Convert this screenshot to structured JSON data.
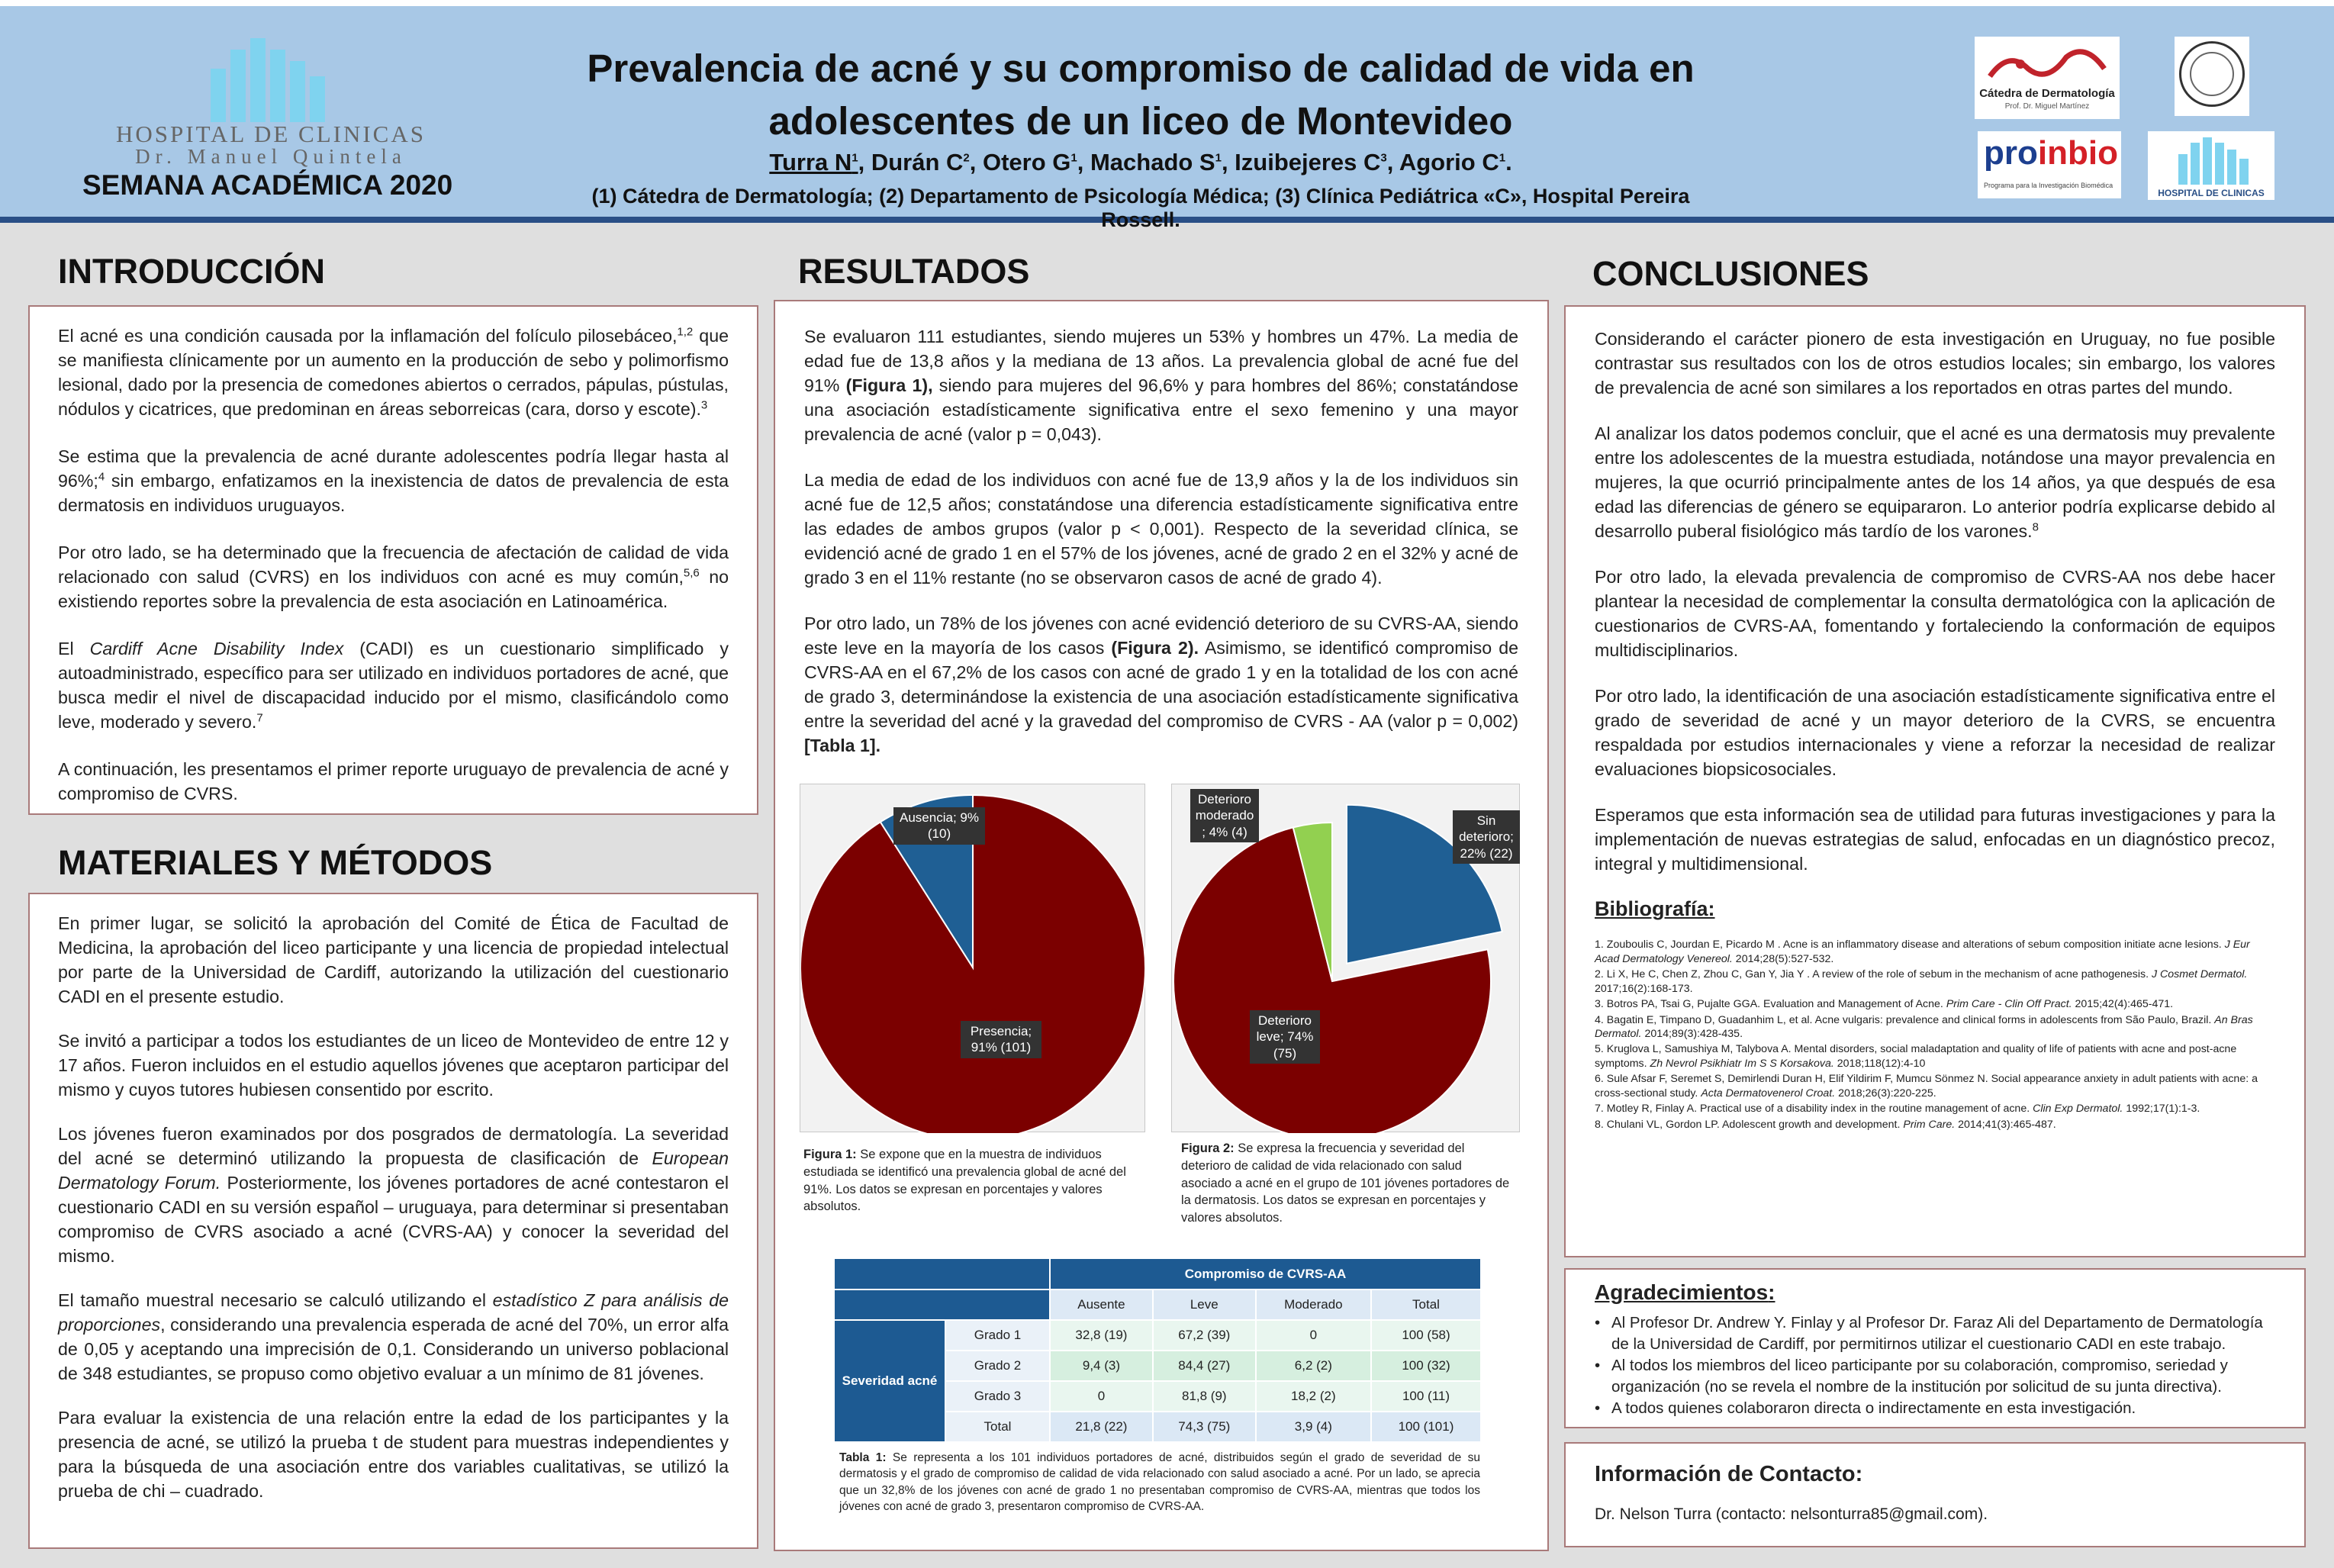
{
  "header": {
    "hospital_name": "HOSPITAL DE CLINICAS",
    "hospital_sub": "Dr. Manuel Quintela",
    "event": "SEMANA ACADÉMICA 2020",
    "title_line1": "Prevalencia de acné y su compromiso de calidad de vida en",
    "title_line2": "adolescentes de un liceo de Montevideo",
    "author_first": "Turra N",
    "author_first_sup": "1",
    "authors_rest": [
      {
        "name": "Durán C",
        "sup": "2"
      },
      {
        "name": "Otero G",
        "sup": "1"
      },
      {
        "name": "Machado S",
        "sup": "1"
      },
      {
        "name": "Izuibejeres C",
        "sup": "3"
      },
      {
        "name": "Agorio C",
        "sup": "1"
      }
    ],
    "affiliations": "(1) Cátedra de Dermatología; (2) Departamento de Psicología Médica; (3) Clínica Pediátrica «C», Hospital Pereira Rossell.",
    "logo_catedra_text": "Cátedra de Dermatología",
    "logo_catedra_sub": "Prof. Dr. Miguel Martínez",
    "logo_proinbio_text": "proinbio",
    "logo_proinbio_sub": "Programa para la Investigación Biomédica",
    "logo_hosp2_text": "HOSPITAL DE CLINICAS",
    "colors": {
      "header_bg": "#a8c8e6",
      "accent": "#2a4f86",
      "dark_red": "#7b0000",
      "blue": "#1d5a92",
      "green": "#92d050"
    }
  },
  "intro": {
    "heading": "INTRODUCCIÓN",
    "p1": "El acné es una condición causada por la inflamación del folículo pilosebáceo,",
    "p1_sup": "1,2",
    "p1b": " que se manifiesta clínicamente por un aumento en la producción de sebo y polimorfismo lesional, dado por la presencia de comedones abiertos o cerrados, pápulas, pústulas, nódulos y cicatrices, que predominan en áreas seborreicas  (cara, dorso y escote).",
    "p1b_sup": "3",
    "p2": "Se estima que la prevalencia de acné durante adolescentes podría llegar hasta al 96%;",
    "p2_sup": "4",
    "p2b": " sin embargo, enfatizamos en la inexistencia de datos de prevalencia de esta dermatosis en individuos uruguayos.",
    "p3": "Por otro lado, se ha determinado que la frecuencia de afectación de calidad de vida relacionado con salud (CVRS) en los individuos con acné es muy común,",
    "p3_sup": "5,6",
    "p3b": " no existiendo reportes sobre la prevalencia de esta asociación en Latinoamérica.",
    "p4a": "El ",
    "p4_italic": "Cardiff Acne Disability Index",
    "p4b": " (CADI) es un cuestionario simplificado y autoadministrado, específico para ser utilizado en individuos portadores de acné, que busca medir el nivel de discapacidad inducido por el mismo, clasificándolo como leve, moderado y severo.",
    "p4_sup": "7",
    "p5": "A continuación, les presentamos el primer reporte uruguayo de prevalencia de acné y compromiso de CVRS."
  },
  "methods": {
    "heading": "MATERIALES Y MÉTODOS",
    "p1": "En primer lugar, se solicitó la aprobación del Comité de Ética de Facultad de Medicina, la aprobación del liceo participante y una licencia de propiedad intelectual por parte de la Universidad de Cardiff, autorizando la utilización del cuestionario CADI en el presente estudio.",
    "p2": "Se invitó a participar a todos los estudiantes de un liceo de Montevideo de entre 12 y 17 años. Fueron incluidos en el estudio aquellos jóvenes que aceptaron participar del mismo y cuyos tutores hubiesen consentido por escrito.",
    "p3a": "Los jóvenes fueron examinados por dos posgrados de dermatología. La severidad del acné se determinó utilizando la propuesta de clasificación de ",
    "p3_italic": "European Dermatology Forum.",
    "p3b": " Posteriormente, los jóvenes portadores de acné contestaron el cuestionario CADI en su versión español – uruguaya, para determinar si presentaban compromiso de CVRS asociado a acné (CVRS-AA) y conocer la severidad del mismo.",
    "p4a": "El tamaño muestral necesario se calculó utilizando el ",
    "p4_italic": "estadístico Z para análisis de proporciones",
    "p4b": ", considerando una prevalencia esperada de acné del 70%, un error alfa de 0,05 y aceptando una imprecisión de 0,1. Considerando un universo poblacional de 348 estudiantes, se propuso como objetivo evaluar a un mínimo de 81 jóvenes.",
    "p5": "Para evaluar la  existencia de una relación entre la edad de los participantes y la presencia de acné, se utilizó la prueba t de student para muestras independientes y para la búsqueda de una asociación entre dos variables cualitativas, se utilizó la prueba de chi – cuadrado."
  },
  "results": {
    "heading": "RESULTADOS",
    "p1a": "Se evaluaron 111 estudiantes, siendo mujeres un 53% y hombres un 47%. La media de edad fue de 13,8 años y la mediana de 13 años. La prevalencia global de acné fue del 91% ",
    "p1_bold": "(Figura 1),",
    "p1b": " siendo para mujeres del 96,6% y para hombres del 86%; constatándose una asociación estadísticamente significativa entre el sexo femenino y una mayor prevalencia de acné (valor p = 0,043).",
    "p2": "La media de edad de los individuos con acné fue de 13,9 años y la de los individuos sin acné fue de 12,5 años; constatándose una diferencia estadísticamente significativa entre las edades de ambos grupos (valor p < 0,001). Respecto de la severidad clínica, se evidenció acné de grado 1 en el 57% de los jóvenes, acné de grado 2 en el 32% y acné de grado 3 en el 11% restante (no se observaron casos de acné de grado 4).",
    "p3a": "Por otro lado, un 78% de los jóvenes con acné evidenció deterioro de su CVRS-AA, siendo este leve en la mayoría de los casos ",
    "p3_bold": "(Figura 2).",
    "p3b": " Asimismo, se identificó compromiso de CVRS-AA en el 67,2% de los casos con acné de grado 1 y en la totalidad de los con acné de grado 3, determinándose la existencia de una asociación estadísticamente significativa entre la severidad del acné y la gravedad del compromiso de CVRS - AA (valor p = 0,002) ",
    "p3_bold2": "[Tabla 1].",
    "fig1_caption_bold": "Figura 1:",
    "fig1_caption": " Se expone que en la muestra de individuos estudiada se identificó una prevalencia global de acné del 91%. Los datos se expresan en porcentajes   y valores absolutos.",
    "fig2_caption_bold": "Figura 2:",
    "fig2_caption": " Se expresa la frecuencia y severidad del deterioro de calidad de vida relacionado con salud asociado a acné en el grupo de 101 jóvenes portadores de la dermatosis. Los datos se expresan en porcentajes y valores absolutos.",
    "table_caption_bold": "Tabla 1:",
    "table_caption": " Se representa a los 101 individuos portadores de acné, distribuidos según el grado de severidad de su dermatosis y el grado de compromiso de calidad de vida relacionado con salud asociado a acné. Por un lado, se aprecia que un 32,8% de los jóvenes con acné de grado 1 no presentaban compromiso de CVRS-AA, mientras que todos los jóvenes con acné de grado 3, presentaron compromiso de CVRS-AA."
  },
  "chart_data": [
    {
      "type": "pie",
      "title": "",
      "slices": [
        {
          "label": "Presencia; 91% (101)",
          "value": 101,
          "percent": 91,
          "color": "#7b0000"
        },
        {
          "label": "Ausencia; 9% (10)",
          "value": 10,
          "percent": 9,
          "color": "#1f5f94"
        }
      ]
    },
    {
      "type": "pie",
      "title": "",
      "slices": [
        {
          "label": "Sin deterioro; 22% (22)",
          "value": 22,
          "percent": 22,
          "color": "#1f5f94",
          "exploded": true
        },
        {
          "label": "Deterioro leve; 74% (75)",
          "value": 75,
          "percent": 74,
          "color": "#7b0000"
        },
        {
          "label": "Deterioro moderado ; 4% (4)",
          "value": 4,
          "percent": 4,
          "color": "#92d050"
        }
      ]
    },
    {
      "type": "table",
      "group_header": "Compromiso de CVRS-AA",
      "row_group": "Severidad acné",
      "columns": [
        "Ausente",
        "Leve",
        "Moderado",
        "Total"
      ],
      "rows": [
        {
          "label": "Grado 1",
          "cells": [
            "32,8 (19)",
            "67,2 (39)",
            "0",
            "100 (58)"
          ]
        },
        {
          "label": "Grado 2",
          "cells": [
            "9,4 (3)",
            "84,4 (27)",
            "6,2 (2)",
            "100 (32)"
          ]
        },
        {
          "label": "Grado 3",
          "cells": [
            "0",
            "81,8 (9)",
            "18,2 (2)",
            "100 (11)"
          ]
        },
        {
          "label": "Total",
          "cells": [
            "21,8 (22)",
            "74,3 (75)",
            "3,9 (4)",
            "100 (101)"
          ]
        }
      ]
    }
  ],
  "conclusions": {
    "heading": "CONCLUSIONES",
    "p1": "Considerando el carácter pionero de esta investigación en Uruguay, no fue posible contrastar sus resultados con los de otros estudios locales; sin embargo, los valores de prevalencia de acné son similares a los reportados en otras partes del mundo.",
    "p2": "Al analizar los datos podemos concluir, que el acné es una dermatosis muy prevalente entre los adolescentes de la muestra estudiada, notándose una mayor prevalencia en mujeres, la que ocurrió principalmente antes de los 14 años, ya que después de esa edad las diferencias de género se equipararon. Lo anterior podría explicarse debido al desarrollo puberal fisiológico más tardío de los varones.",
    "p2_sup": "8",
    "p3": "Por otro lado, la elevada prevalencia de compromiso de CVRS-AA nos debe hacer plantear la necesidad de complementar la consulta dermatológica con la aplicación de cuestionarios de CVRS-AA, fomentando y fortaleciendo la conformación de equipos multidisciplinarios.",
    "p4": "Por otro lado, la identificación de una asociación estadísticamente significativa entre el grado de severidad de acné y un mayor deterioro de la CVRS, se encuentra respaldada por estudios internacionales y viene a reforzar la necesidad de realizar evaluaciones biopsicosociales.",
    "p5": "Esperamos que esta información sea de utilidad para futuras investigaciones y para la implementación de nuevas estrategias de salud, enfocadas en un diagnóstico precoz, integral y multidimensional.",
    "bib_heading": "Bibliografía:",
    "bib": [
      {
        "text": "1. Zouboulis C, Jourdan E, Picardo M . Acne is an inflammatory disease and alterations of sebum composition initiate acne lesions. ",
        "journal": "J Eur Acad Dermatology Venereol.",
        "rest": " 2014;28(5):527-532."
      },
      {
        "text": "2. Li X, He C, Chen Z, Zhou C, Gan Y, Jia Y . A review of the role of sebum in the mechanism of acne pathogenesis. ",
        "journal": "J Cosmet Dermatol.",
        "rest": " 2017;16(2):168-173."
      },
      {
        "text": "3. Botros PA, Tsai G, Pujalte GGA. Evaluation and Management of Acne. ",
        "journal": "Prim Care - Clin Off Pract.",
        "rest": " 2015;42(4):465-471."
      },
      {
        "text": "4. Bagatin E, Timpano D, Guadanhim L, et al. Acne vulgaris: prevalence and clinical forms in adolescents from São Paulo, Brazil. ",
        "journal": "An Bras Dermatol.",
        "rest": " 2014;89(3):428-435."
      },
      {
        "text": "5. Kruglova L, Samushiya M, Talybova A. Mental disorders, social maladaptation and quality of life of patients with acne and post-acne symptoms. ",
        "journal": "Zh Nevrol Psikhiatr Im S S Korsakova.",
        "rest": " 2018;118(12):4-10"
      },
      {
        "text": "6. Sule Afsar F, Seremet S, Demirlendi Duran H, Elif Yildirim F, Mumcu Sönmez N. Social appearance anxiety in adult patients with acne: a cross-sectional study. ",
        "journal": "Acta Dermatovenerol Croat.",
        "rest": " 2018;26(3):220-225."
      },
      {
        "text": "7. Motley R, Finlay A. Practical use of a disability index in the routine management of acne. ",
        "journal": "Clin Exp Dermatol.",
        "rest": " 1992;17(1):1-3."
      },
      {
        "text": "8. Chulani VL, Gordon LP. Adolescent growth and development. ",
        "journal": "Prim Care.",
        "rest": " 2014;41(3):465-487."
      }
    ]
  },
  "thanks": {
    "heading": "Agradecimientos",
    "heading_colon": ":",
    "items": [
      "Al Profesor Dr. Andrew Y. Finlay y al Profesor Dr. Faraz Ali del Departamento de Dermatología de la Universidad de Cardiff, por permitirnos utilizar el cuestionario CADI en este trabajo.",
      "Al todos los miembros del liceo participante por su colaboración, compromiso, seriedad y organización (no se revela  el nombre de la institución por solicitud de su junta directiva).",
      "A todos quienes colaboraron directa o indirectamente en esta investigación."
    ]
  },
  "contact": {
    "heading": "Información de Contacto:",
    "text": "Dr. Nelson Turra (contacto: nelsonturra85@gmail.com)."
  }
}
